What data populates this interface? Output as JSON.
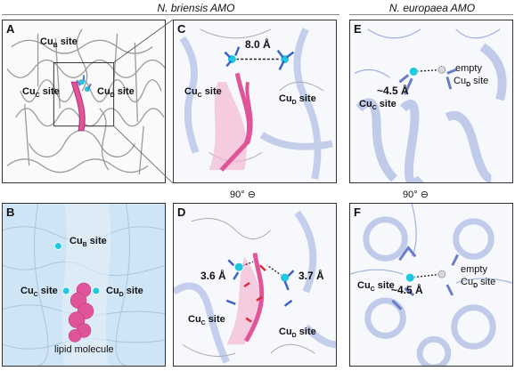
{
  "headers": {
    "left": "N. briensis AMO",
    "right": "N. europaea AMO"
  },
  "panels": {
    "A": {
      "letter": "A",
      "cub": "Cu",
      "cub_sub": "B",
      "site": " site",
      "cuc": "Cu",
      "cuc_sub": "C",
      "cud": "Cu",
      "cud_sub": "D"
    },
    "B": {
      "letter": "B",
      "cub": "Cu",
      "cub_sub": "B",
      "site": " site",
      "cuc": "Cu",
      "cuc_sub": "C",
      "cud": "Cu",
      "cud_sub": "D",
      "lipid": "lipid molecule"
    },
    "C": {
      "letter": "C",
      "dist": "8.0 Å",
      "cuc": "Cu",
      "cuc_sub": "C",
      "cud": "Cu",
      "cud_sub": "D",
      "site": " site"
    },
    "D": {
      "letter": "D",
      "dist1": "3.6 Å",
      "dist2": "3.7 Å",
      "cuc": "Cu",
      "cuc_sub": "C",
      "cud": "Cu",
      "cud_sub": "D",
      "site": " site"
    },
    "E": {
      "letter": "E",
      "dist": "~4.5 Å",
      "cuc": "Cu",
      "cuc_sub": "C",
      "site": " site",
      "empty": "empty",
      "cud": "Cu",
      "cud_sub": "D"
    },
    "F": {
      "letter": "F",
      "dist": "~4.5 Å",
      "cuc": "Cu",
      "cuc_sub": "C",
      "site": " site",
      "empty": "empty",
      "cud": "Cu",
      "cud_sub": "D"
    }
  },
  "rotation": {
    "label": "90°"
  },
  "colors": {
    "copper": "#1ec8e0",
    "lipid": "#e0559a",
    "protein": "#b7c4e8",
    "surface": "#cfe4f5"
  }
}
